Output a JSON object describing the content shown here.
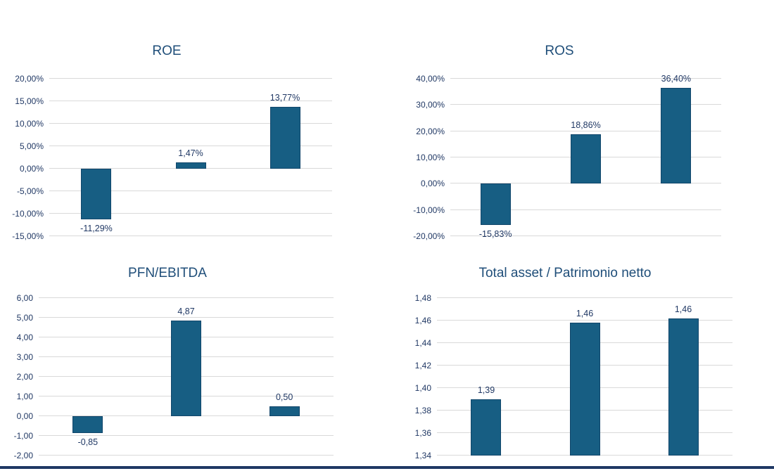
{
  "style": {
    "bar_fill": "#175E83",
    "bar_border": "#11466B",
    "grid_color": "#D9D9D9",
    "title_color": "#1F4E79",
    "text_color": "#203864",
    "bottom_rule_color": "#1F3864"
  },
  "chart_data": [
    {
      "type": "bar",
      "title": "ROE",
      "values": [
        -11.29,
        1.47,
        13.77
      ],
      "value_labels": [
        "-11,29%",
        "1,47%",
        "13,77%"
      ],
      "ylim": [
        -15,
        20
      ],
      "ytick_step": 5,
      "ytick_labels": [
        "20,00%",
        "15,00%",
        "10,00%",
        "5,00%",
        "0,00%",
        "-5,00%",
        "-10,00%",
        "-15,00%"
      ],
      "baseline": 0,
      "grid": true,
      "legend": false,
      "xlabel": "",
      "ylabel": ""
    },
    {
      "type": "bar",
      "title": "ROS",
      "values": [
        -15.83,
        18.86,
        36.4
      ],
      "value_labels": [
        "-15,83%",
        "18,86%",
        "36,40%"
      ],
      "ylim": [
        -20,
        40
      ],
      "ytick_step": 10,
      "ytick_labels": [
        "40,00%",
        "30,00%",
        "20,00%",
        "10,00%",
        "0,00%",
        "-10,00%",
        "-20,00%"
      ],
      "baseline": 0,
      "grid": true,
      "legend": false,
      "xlabel": "",
      "ylabel": ""
    },
    {
      "type": "bar",
      "title": "PFN/EBITDA",
      "values": [
        -0.85,
        4.87,
        0.5
      ],
      "value_labels": [
        "-0,85",
        "4,87",
        "0,50"
      ],
      "ylim": [
        -2,
        6
      ],
      "ytick_step": 1,
      "ytick_labels": [
        "6,00",
        "5,00",
        "4,00",
        "3,00",
        "2,00",
        "1,00",
        "0,00",
        "-1,00",
        "-2,00"
      ],
      "baseline": 0,
      "grid": true,
      "legend": false,
      "xlabel": "",
      "ylabel": ""
    },
    {
      "type": "bar",
      "title": "Total asset / Patrimonio netto",
      "values": [
        1.39,
        1.458,
        1.462
      ],
      "value_labels": [
        "1,39",
        "1,46",
        "1,46"
      ],
      "ylim": [
        1.34,
        1.48
      ],
      "ytick_step": 0.02,
      "ytick_labels": [
        "1,48",
        "1,46",
        "1,44",
        "1,42",
        "1,40",
        "1,38",
        "1,36",
        "1,34"
      ],
      "baseline": 1.34,
      "grid": true,
      "legend": false,
      "xlabel": "",
      "ylabel": ""
    }
  ]
}
